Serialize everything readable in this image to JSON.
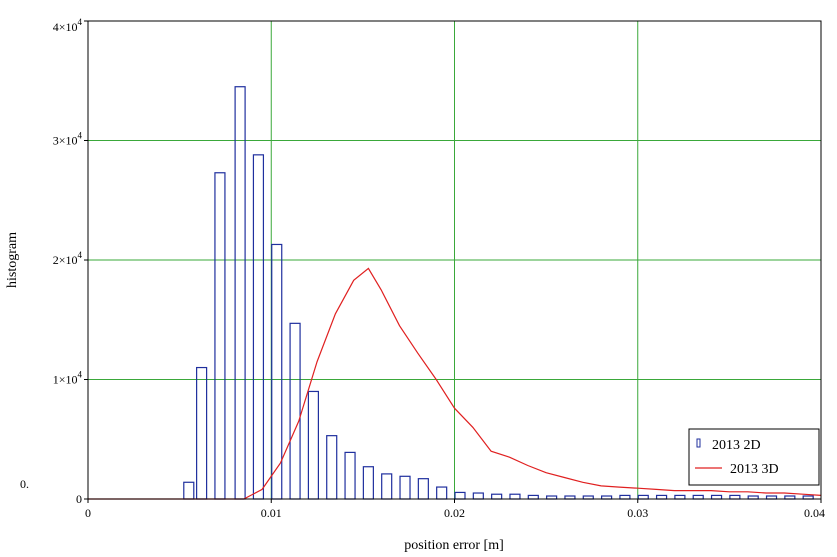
{
  "chart_data": {
    "type": "bar",
    "xlabel": "position error [m]",
    "ylabel": "histogram",
    "xlim": [
      0,
      0.04
    ],
    "ylim": [
      0,
      40000
    ],
    "x_ticks": [
      0,
      0.01,
      0.02,
      0.03,
      0.04
    ],
    "x_tick_labels": [
      "0",
      "0.01",
      "0.02",
      "0.03",
      "0.04"
    ],
    "y_ticks": [
      0,
      10000,
      20000,
      30000,
      40000
    ],
    "y_tick_labels": [
      {
        "mantissa": "0",
        "exp": ""
      },
      {
        "mantissa": "1×10",
        "exp": "4"
      },
      {
        "mantissa": "2×10",
        "exp": "4"
      },
      {
        "mantissa": "3×10",
        "exp": "4"
      },
      {
        "mantissa": "4×10",
        "exp": "4"
      }
    ],
    "grid": true,
    "legend_position": "bottom-right",
    "stray_mark": "0.",
    "colors": {
      "bars": "#1f2f9e",
      "line": "#e02020",
      "grid": "#3aa83a"
    },
    "series": [
      {
        "name": "2013 2D",
        "style": "histogram bars",
        "bar_width": 0.0006,
        "x": [
          0.0055,
          0.0062,
          0.0072,
          0.0083,
          0.0093,
          0.0103,
          0.0113,
          0.0123,
          0.0133,
          0.0143,
          0.0153,
          0.0163,
          0.0173,
          0.0183,
          0.0193,
          0.0203,
          0.0213,
          0.0223,
          0.0233,
          0.0243,
          0.0253,
          0.0263,
          0.0273,
          0.0283,
          0.0293,
          0.0303,
          0.0313,
          0.0323,
          0.0333,
          0.0343,
          0.0353,
          0.0363,
          0.0373,
          0.0383,
          0.0393
        ],
        "values": [
          1400,
          11000,
          27300,
          34500,
          28800,
          21300,
          14700,
          9000,
          5300,
          3900,
          2700,
          2100,
          1900,
          1700,
          1000,
          550,
          500,
          400,
          400,
          300,
          250,
          250,
          250,
          250,
          300,
          300,
          300,
          300,
          300,
          300,
          300,
          250,
          250,
          250,
          250
        ]
      },
      {
        "name": "2013 3D",
        "style": "line",
        "x": [
          0,
          0.0085,
          0.0095,
          0.0105,
          0.0115,
          0.0125,
          0.0135,
          0.0145,
          0.0153,
          0.016,
          0.017,
          0.018,
          0.019,
          0.02,
          0.021,
          0.022,
          0.023,
          0.024,
          0.025,
          0.026,
          0.027,
          0.028,
          0.029,
          0.03,
          0.031,
          0.032,
          0.033,
          0.034,
          0.035,
          0.036,
          0.037,
          0.038,
          0.039,
          0.04
        ],
        "values": [
          0,
          0,
          800,
          3000,
          6500,
          11500,
          15500,
          18300,
          19300,
          17500,
          14500,
          12200,
          10000,
          7600,
          6000,
          4000,
          3500,
          2800,
          2200,
          1800,
          1400,
          1100,
          1000,
          900,
          800,
          700,
          700,
          700,
          600,
          600,
          500,
          500,
          400,
          300
        ]
      }
    ]
  }
}
